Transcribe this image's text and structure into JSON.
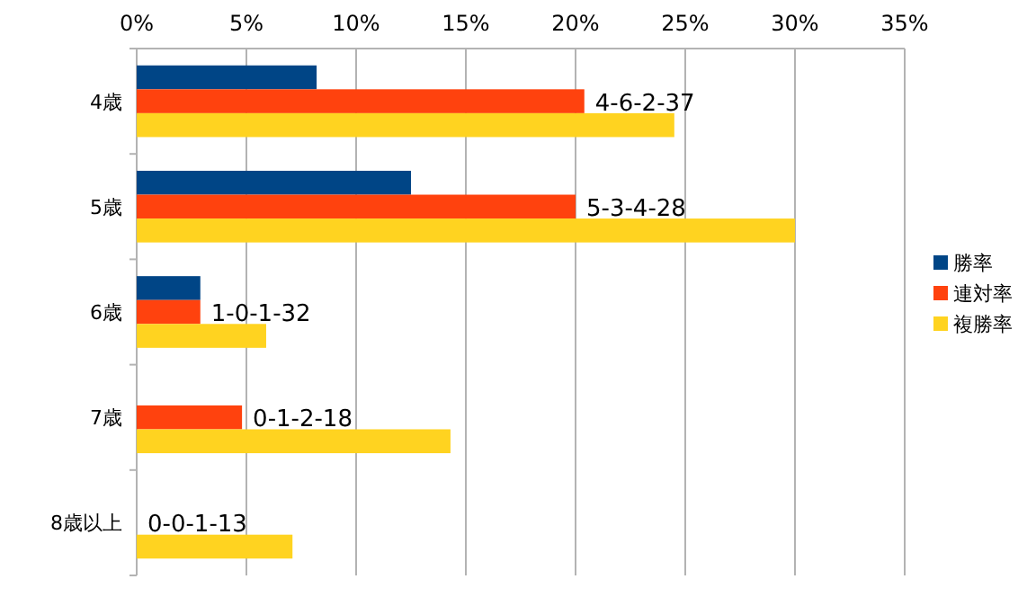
{
  "chart_data": {
    "type": "bar",
    "orientation": "horizontal",
    "categories": [
      "4歳",
      "5歳",
      "6歳",
      "7歳",
      "8歳以上"
    ],
    "series": [
      {
        "name": "勝率",
        "color": "#004586",
        "values": [
          8.2,
          12.5,
          2.9,
          0,
          0
        ]
      },
      {
        "name": "連対率",
        "color": "#ff420e",
        "values": [
          20.4,
          20,
          2.9,
          4.8,
          0
        ]
      },
      {
        "name": "複勝率",
        "color": "#ffd320",
        "values": [
          24.5,
          30,
          5.9,
          14.3,
          7.1
        ]
      }
    ],
    "xlim": [
      0,
      35
    ],
    "xticks": [
      {
        "value": 0,
        "label": "0%"
      },
      {
        "value": 5,
        "label": "5%"
      },
      {
        "value": 10,
        "label": "10%"
      },
      {
        "value": 15,
        "label": "15%"
      },
      {
        "value": 20,
        "label": "20%"
      },
      {
        "value": 25,
        "label": "25%"
      },
      {
        "value": 30,
        "label": "30%"
      },
      {
        "value": 35,
        "label": "35%"
      }
    ],
    "grid": "x",
    "legend": "right",
    "annotations": [
      {
        "text": "4-6-2-37",
        "x": 20.4,
        "y": "4歳"
      },
      {
        "text": "5-3-4-28",
        "x": 20,
        "y": "5歳"
      },
      {
        "text": "1-0-1-32",
        "x": 2.9,
        "y": "6歳"
      },
      {
        "text": "0-1-2-18",
        "x": 4.8,
        "y": "7歳"
      },
      {
        "text": "0-0-1-13",
        "x": 0,
        "y": "8歳以上"
      }
    ]
  }
}
